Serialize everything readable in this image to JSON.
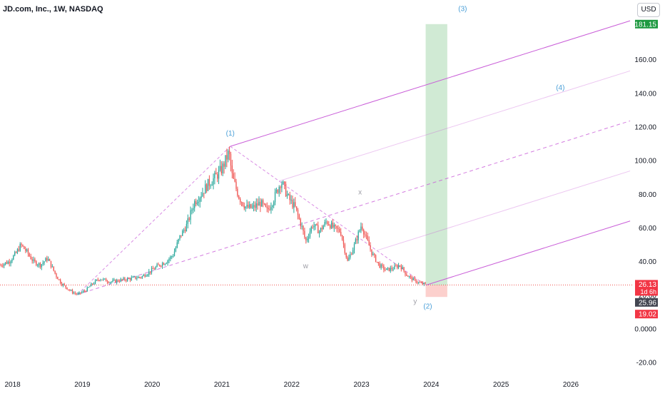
{
  "header": {
    "title": "JD.com, Inc., 1W, NASDAQ",
    "currency": "USD"
  },
  "colors": {
    "up": "#26a69a",
    "down": "#ef5350",
    "channel": "#c95dd8",
    "target": "#27a03a",
    "stop": "#f44336",
    "wave": "#4a9fd8",
    "price_line": "#ef5350",
    "corrective": "#9e9ea6"
  },
  "chart_data": {
    "type": "candlestick",
    "title": "JD.com, Inc., 1W, NASDAQ",
    "interval": "1W",
    "y_axis": {
      "range": [
        -25,
        187
      ],
      "ticks": [
        -20,
        0,
        20,
        40,
        60,
        80,
        100,
        120,
        140,
        160
      ],
      "tick_labels": [
        "-20.00",
        "0.0000",
        "20.00",
        "40.00",
        "60.00",
        "80.00",
        "100.00",
        "120.00",
        "140.00",
        "160.00"
      ],
      "position": "right"
    },
    "x_axis": {
      "range": [
        2017.82,
        2026.9
      ],
      "ticks": [
        2018,
        2019,
        2020,
        2021,
        2022,
        2023,
        2024,
        2025,
        2026
      ],
      "tick_labels": [
        "2018",
        "2019",
        "2020",
        "2021",
        "2022",
        "2023",
        "2024",
        "2025",
        "2026"
      ]
    },
    "price_path": [
      [
        2017.82,
        38
      ],
      [
        2017.95,
        40
      ],
      [
        2018.05,
        45
      ],
      [
        2018.12,
        50
      ],
      [
        2018.2,
        46
      ],
      [
        2018.3,
        40
      ],
      [
        2018.4,
        38
      ],
      [
        2018.5,
        42
      ],
      [
        2018.55,
        38
      ],
      [
        2018.62,
        32
      ],
      [
        2018.7,
        27
      ],
      [
        2018.85,
        22
      ],
      [
        2018.93,
        20.5
      ],
      [
        2019.05,
        23
      ],
      [
        2019.15,
        27
      ],
      [
        2019.25,
        30
      ],
      [
        2019.4,
        28
      ],
      [
        2019.55,
        29
      ],
      [
        2019.7,
        30
      ],
      [
        2019.85,
        31
      ],
      [
        2020.0,
        35
      ],
      [
        2020.1,
        38
      ],
      [
        2020.2,
        40
      ],
      [
        2020.3,
        44
      ],
      [
        2020.4,
        55
      ],
      [
        2020.5,
        62
      ],
      [
        2020.6,
        75
      ],
      [
        2020.7,
        80
      ],
      [
        2020.8,
        86
      ],
      [
        2020.9,
        90
      ],
      [
        2021.0,
        95
      ],
      [
        2021.1,
        105
      ],
      [
        2021.15,
        90
      ],
      [
        2021.25,
        78
      ],
      [
        2021.35,
        72
      ],
      [
        2021.45,
        72
      ],
      [
        2021.55,
        75
      ],
      [
        2021.65,
        70
      ],
      [
        2021.75,
        78
      ],
      [
        2021.85,
        88
      ],
      [
        2021.95,
        78
      ],
      [
        2022.05,
        72
      ],
      [
        2022.15,
        60
      ],
      [
        2022.2,
        52
      ],
      [
        2022.3,
        62
      ],
      [
        2022.4,
        58
      ],
      [
        2022.5,
        64
      ],
      [
        2022.6,
        60
      ],
      [
        2022.7,
        58
      ],
      [
        2022.8,
        40
      ],
      [
        2022.9,
        50
      ],
      [
        2023.0,
        62
      ],
      [
        2023.05,
        56
      ],
      [
        2023.15,
        45
      ],
      [
        2023.25,
        38
      ],
      [
        2023.35,
        35
      ],
      [
        2023.45,
        36
      ],
      [
        2023.55,
        38
      ],
      [
        2023.65,
        32
      ],
      [
        2023.75,
        29
      ],
      [
        2023.85,
        27
      ],
      [
        2023.92,
        26.5
      ]
    ],
    "last_price": "26.13",
    "price_label_time": "1d 6h",
    "price_labels": [
      {
        "value": "181.15",
        "y": 181.15,
        "kind": "target"
      },
      {
        "value": "26.13",
        "y": 26.13,
        "kind": "last"
      },
      {
        "value": "25.96",
        "y": 25.96,
        "kind": "entry"
      },
      {
        "value": "19.02",
        "y": 19.02,
        "kind": "stop"
      }
    ],
    "annotations": [
      {
        "label": "(1)",
        "x": 2021.12,
        "y": 115,
        "style": "wave"
      },
      {
        "label": "(2)",
        "x": 2023.95,
        "y": 12,
        "style": "wave"
      },
      {
        "label": "(3)",
        "x": 2024.45,
        "y": 189,
        "style": "wave"
      },
      {
        "label": "(4)",
        "x": 2025.85,
        "y": 142,
        "style": "wave"
      },
      {
        "label": "w",
        "x": 2022.2,
        "y": 36,
        "style": "corrective"
      },
      {
        "label": "x",
        "x": 2022.98,
        "y": 80,
        "style": "corrective"
      },
      {
        "label": "y",
        "x": 2023.77,
        "y": 15,
        "style": "corrective"
      }
    ],
    "pitchfork": {
      "pivots": [
        [
          2018.93,
          20.5
        ],
        [
          2021.12,
          108.5
        ],
        [
          2023.92,
          26
        ]
      ],
      "extends_to_x": 2026.85
    },
    "position": {
      "x_start": 2023.92,
      "x_end": 2024.23,
      "entry": 25.96,
      "target": 181.15,
      "stop": 19.02
    }
  }
}
